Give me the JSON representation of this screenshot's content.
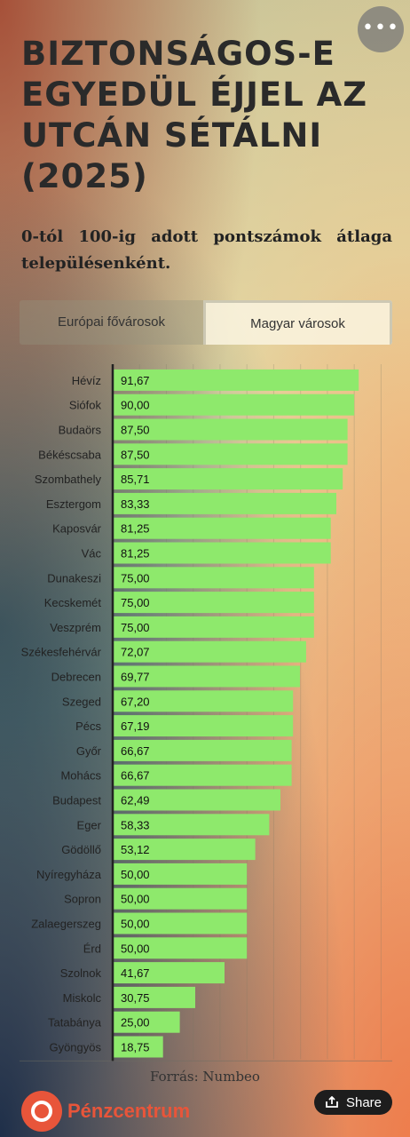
{
  "menu": {
    "icon": "more-horizontal-icon",
    "label": "•••"
  },
  "header": {
    "title": "BIZTONSÁGOS-E EGYEDÜL ÉJJEL AZ UTCÁN SÉTÁLNI (2025)",
    "subtitle": "0-tól 100-ig adott pontszámok átlaga településenként."
  },
  "tabs": [
    {
      "label": "Európai fővárosok",
      "active": false
    },
    {
      "label": "Magyar városok",
      "active": true
    }
  ],
  "chart_data": {
    "type": "bar",
    "orientation": "horizontal",
    "categories": [
      "Hévíz",
      "Siófok",
      "Budaörs",
      "Békéscsaba",
      "Szombathely",
      "Esztergom",
      "Kaposvár",
      "Vác",
      "Dunakeszi",
      "Kecskemét",
      "Veszprém",
      "Székesfehérvár",
      "Debrecen",
      "Szeged",
      "Pécs",
      "Győr",
      "Mohács",
      "Budapest",
      "Eger",
      "Gödöllő",
      "Nyíregyháza",
      "Sopron",
      "Zalaegerszeg",
      "Érd",
      "Szolnok",
      "Miskolc",
      "Tatabánya",
      "Gyöngyös"
    ],
    "values": [
      91.67,
      90.0,
      87.5,
      87.5,
      85.71,
      83.33,
      81.25,
      81.25,
      75.0,
      75.0,
      75.0,
      72.07,
      69.77,
      67.2,
      67.19,
      66.67,
      66.67,
      62.49,
      58.33,
      53.12,
      50.0,
      50.0,
      50.0,
      50.0,
      41.67,
      30.75,
      25.0,
      18.75
    ],
    "value_labels": [
      "91,67",
      "90,00",
      "87,50",
      "87,50",
      "85,71",
      "83,33",
      "81,25",
      "81,25",
      "75,00",
      "75,00",
      "75,00",
      "72,07",
      "69,77",
      "67,20",
      "67,19",
      "66,67",
      "66,67",
      "62,49",
      "58,33",
      "53,12",
      "50,00",
      "50,00",
      "50,00",
      "50,00",
      "41,67",
      "30,75",
      "25,00",
      "18,75"
    ],
    "xlim": [
      0,
      100
    ],
    "bar_color": "#8ee96c",
    "grid": true
  },
  "footer": {
    "source": "Forrás: Numbeo",
    "logo": "Pénzcentrum",
    "logo_color": "#e8553a",
    "share_label": "Share",
    "share_icon": "share-icon"
  }
}
